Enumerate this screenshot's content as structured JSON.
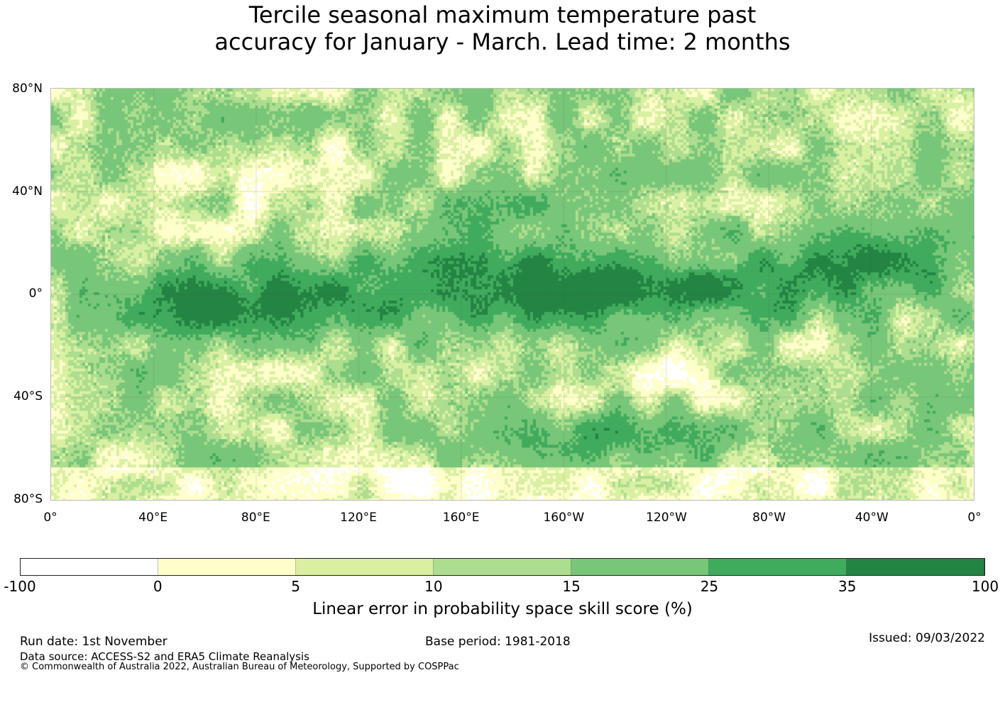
{
  "title_line1": "Tercile seasonal maximum temperature past",
  "title_line2": "accuracy for January - March. Lead time: 2 months",
  "lat_labels": [
    "80°N",
    "40°N",
    "0°",
    "40°S",
    "80°S"
  ],
  "lon_labels": [
    "0°",
    "40°E",
    "80°E",
    "120°E",
    "160°E",
    "160°W",
    "120°W",
    "80°W",
    "40°W",
    "0°"
  ],
  "colorbar": {
    "colors": [
      "#ffffff",
      "#ffffcc",
      "#d9f0a3",
      "#addd8e",
      "#78c679",
      "#41ab5d",
      "#238443"
    ],
    "ticks": [
      "-100",
      "0",
      "5",
      "10",
      "15",
      "25",
      "35",
      "100"
    ],
    "label": "Linear error in probability space skill score (%)"
  },
  "footer": {
    "run_date": "Run date: 1st November",
    "base_period": "Base period: 1981-2018",
    "issued": "Issued: 09/03/2022",
    "data_source": "Data source: ACCESS-S2 and ERA5 Climate Reanalysis",
    "copyright": "© Commonwealth of Australia 2022, Australian Bureau of Meteorology, Supported by COSPPac"
  }
}
